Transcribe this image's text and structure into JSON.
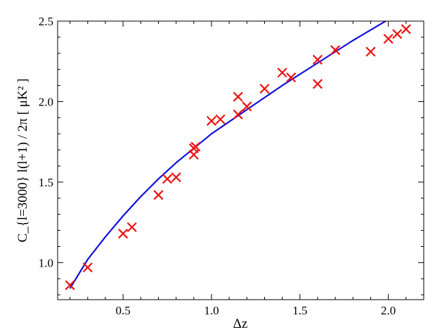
{
  "chart_data": {
    "type": "scatter",
    "title": "",
    "xlabel": "Δz",
    "ylabel": "C_{l=3000} l(l+1) / 2π [ μK² ]",
    "xlim": [
      0.13,
      2.2
    ],
    "ylim": [
      0.77,
      2.5
    ],
    "x_ticks": [
      0.5,
      1.0,
      1.5,
      2.0
    ],
    "x_tick_labels": [
      "0.5",
      "1.0",
      "1.5",
      "2.0"
    ],
    "y_ticks": [
      1.0,
      1.5,
      2.0,
      2.5
    ],
    "y_tick_labels": [
      "1.0",
      "1.5",
      "2.0",
      "2.5"
    ],
    "grid": false,
    "series": [
      {
        "marker": "x",
        "color": "#ee1111",
        "points": [
          [
            0.2,
            0.86
          ],
          [
            0.3,
            0.97
          ],
          [
            0.5,
            1.18
          ],
          [
            0.55,
            1.22
          ],
          [
            0.7,
            1.42
          ],
          [
            0.75,
            1.52
          ],
          [
            0.8,
            1.53
          ],
          [
            0.9,
            1.67
          ],
          [
            0.9,
            1.71
          ],
          [
            0.91,
            1.72
          ],
          [
            1.0,
            1.88
          ],
          [
            1.05,
            1.89
          ],
          [
            1.15,
            1.92
          ],
          [
            1.15,
            2.03
          ],
          [
            1.2,
            1.97
          ],
          [
            1.3,
            2.08
          ],
          [
            1.4,
            2.18
          ],
          [
            1.45,
            2.15
          ],
          [
            1.6,
            2.26
          ],
          [
            1.6,
            2.11
          ],
          [
            1.7,
            2.32
          ],
          [
            1.9,
            2.31
          ],
          [
            2.0,
            2.39
          ],
          [
            2.05,
            2.42
          ],
          [
            2.1,
            2.45
          ]
        ]
      },
      {
        "type": "line",
        "color": "#1010dd",
        "x": [
          0.2,
          0.3,
          0.4,
          0.5,
          0.6,
          0.7,
          0.8,
          0.9,
          1.0,
          1.2,
          1.4,
          1.6,
          1.8,
          2.0
        ],
        "y": [
          0.84,
          1.02,
          1.16,
          1.29,
          1.41,
          1.52,
          1.62,
          1.71,
          1.8,
          1.95,
          2.1,
          2.24,
          2.38,
          2.51
        ]
      }
    ]
  }
}
